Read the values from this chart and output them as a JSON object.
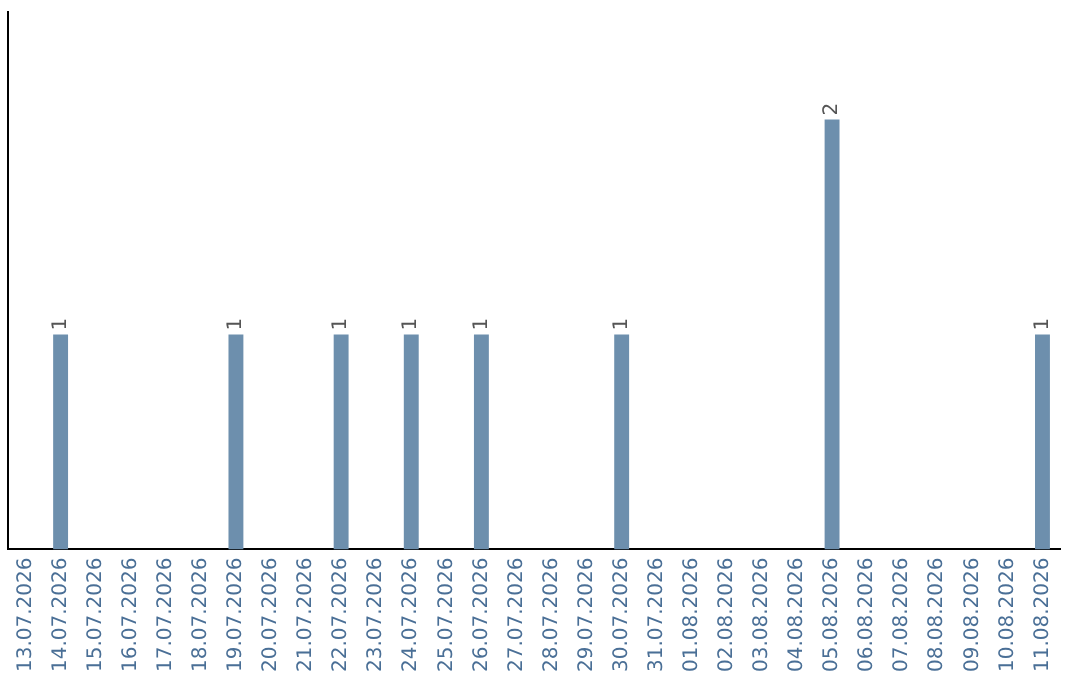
{
  "chart_data": {
    "type": "bar",
    "categories": [
      "13.07.2026",
      "14.07.2026",
      "15.07.2026",
      "16.07.2026",
      "17.07.2026",
      "18.07.2026",
      "19.07.2026",
      "20.07.2026",
      "21.07.2026",
      "22.07.2026",
      "23.07.2026",
      "24.07.2026",
      "25.07.2026",
      "26.07.2026",
      "27.07.2026",
      "28.07.2026",
      "29.07.2026",
      "30.07.2026",
      "31.07.2026",
      "01.08.2026",
      "02.08.2026",
      "03.08.2026",
      "04.08.2026",
      "05.08.2026",
      "06.08.2026",
      "07.08.2026",
      "08.08.2026",
      "09.08.2026",
      "10.08.2026",
      "11.08.2026"
    ],
    "values": [
      0,
      1,
      0,
      0,
      0,
      0,
      1,
      0,
      0,
      1,
      0,
      1,
      0,
      1,
      0,
      0,
      0,
      1,
      0,
      0,
      0,
      0,
      0,
      2,
      0,
      0,
      0,
      0,
      0,
      1
    ],
    "value_labels": [
      null,
      "1",
      null,
      null,
      null,
      null,
      "1",
      null,
      null,
      "1",
      null,
      "1",
      null,
      "1",
      null,
      null,
      null,
      "1",
      null,
      null,
      null,
      null,
      null,
      "2",
      null,
      null,
      null,
      null,
      null,
      "1"
    ],
    "color": "#6d8fad",
    "grid": false,
    "legend": false,
    "tick_labels": "x"
  }
}
